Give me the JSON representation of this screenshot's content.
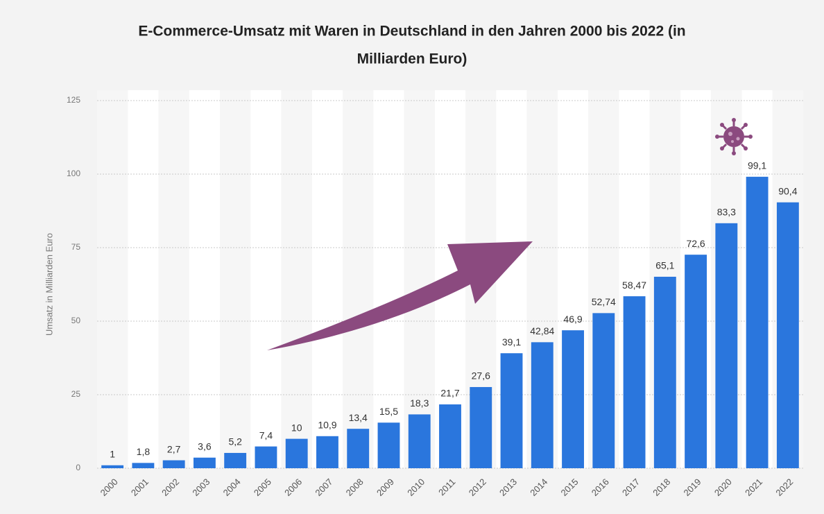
{
  "chart_data": {
    "type": "bar",
    "title": "E-Commerce-Umsatz mit Waren in Deutschland in den Jahren 2000 bis 2022 (in",
    "title_line2": "Milliarden Euro)",
    "y_label": "Umsatz in Milliarden Euro",
    "categories": [
      "2000",
      "2001",
      "2002",
      "2003",
      "2004",
      "2005",
      "2006",
      "2007",
      "2008",
      "2009",
      "2010",
      "2011",
      "2012",
      "2013",
      "2014",
      "2015",
      "2016",
      "2017",
      "2018",
      "2019",
      "2020",
      "2021",
      "2022"
    ],
    "values": [
      1,
      1.8,
      2.7,
      3.6,
      5.2,
      7.4,
      10,
      10.9,
      13.4,
      15.5,
      18.3,
      21.7,
      27.6,
      39.1,
      42.84,
      46.9,
      52.74,
      58.47,
      65.1,
      72.6,
      83.3,
      99.1,
      90.4
    ],
    "value_labels": [
      "1",
      "1,8",
      "2,7",
      "3,6",
      "5,2",
      "7,4",
      "10",
      "10,9",
      "13,4",
      "15,5",
      "18,3",
      "21,7",
      "27,6",
      "39,1",
      "42,84",
      "46,9",
      "52,74",
      "58,47",
      "65,1",
      "72,6",
      "83,3",
      "99,1",
      "90,4"
    ],
    "color": "#2a76dd",
    "ylim": [
      0,
      125
    ],
    "yticks": [
      0,
      25,
      50,
      75,
      100,
      125
    ],
    "grid": true
  }
}
